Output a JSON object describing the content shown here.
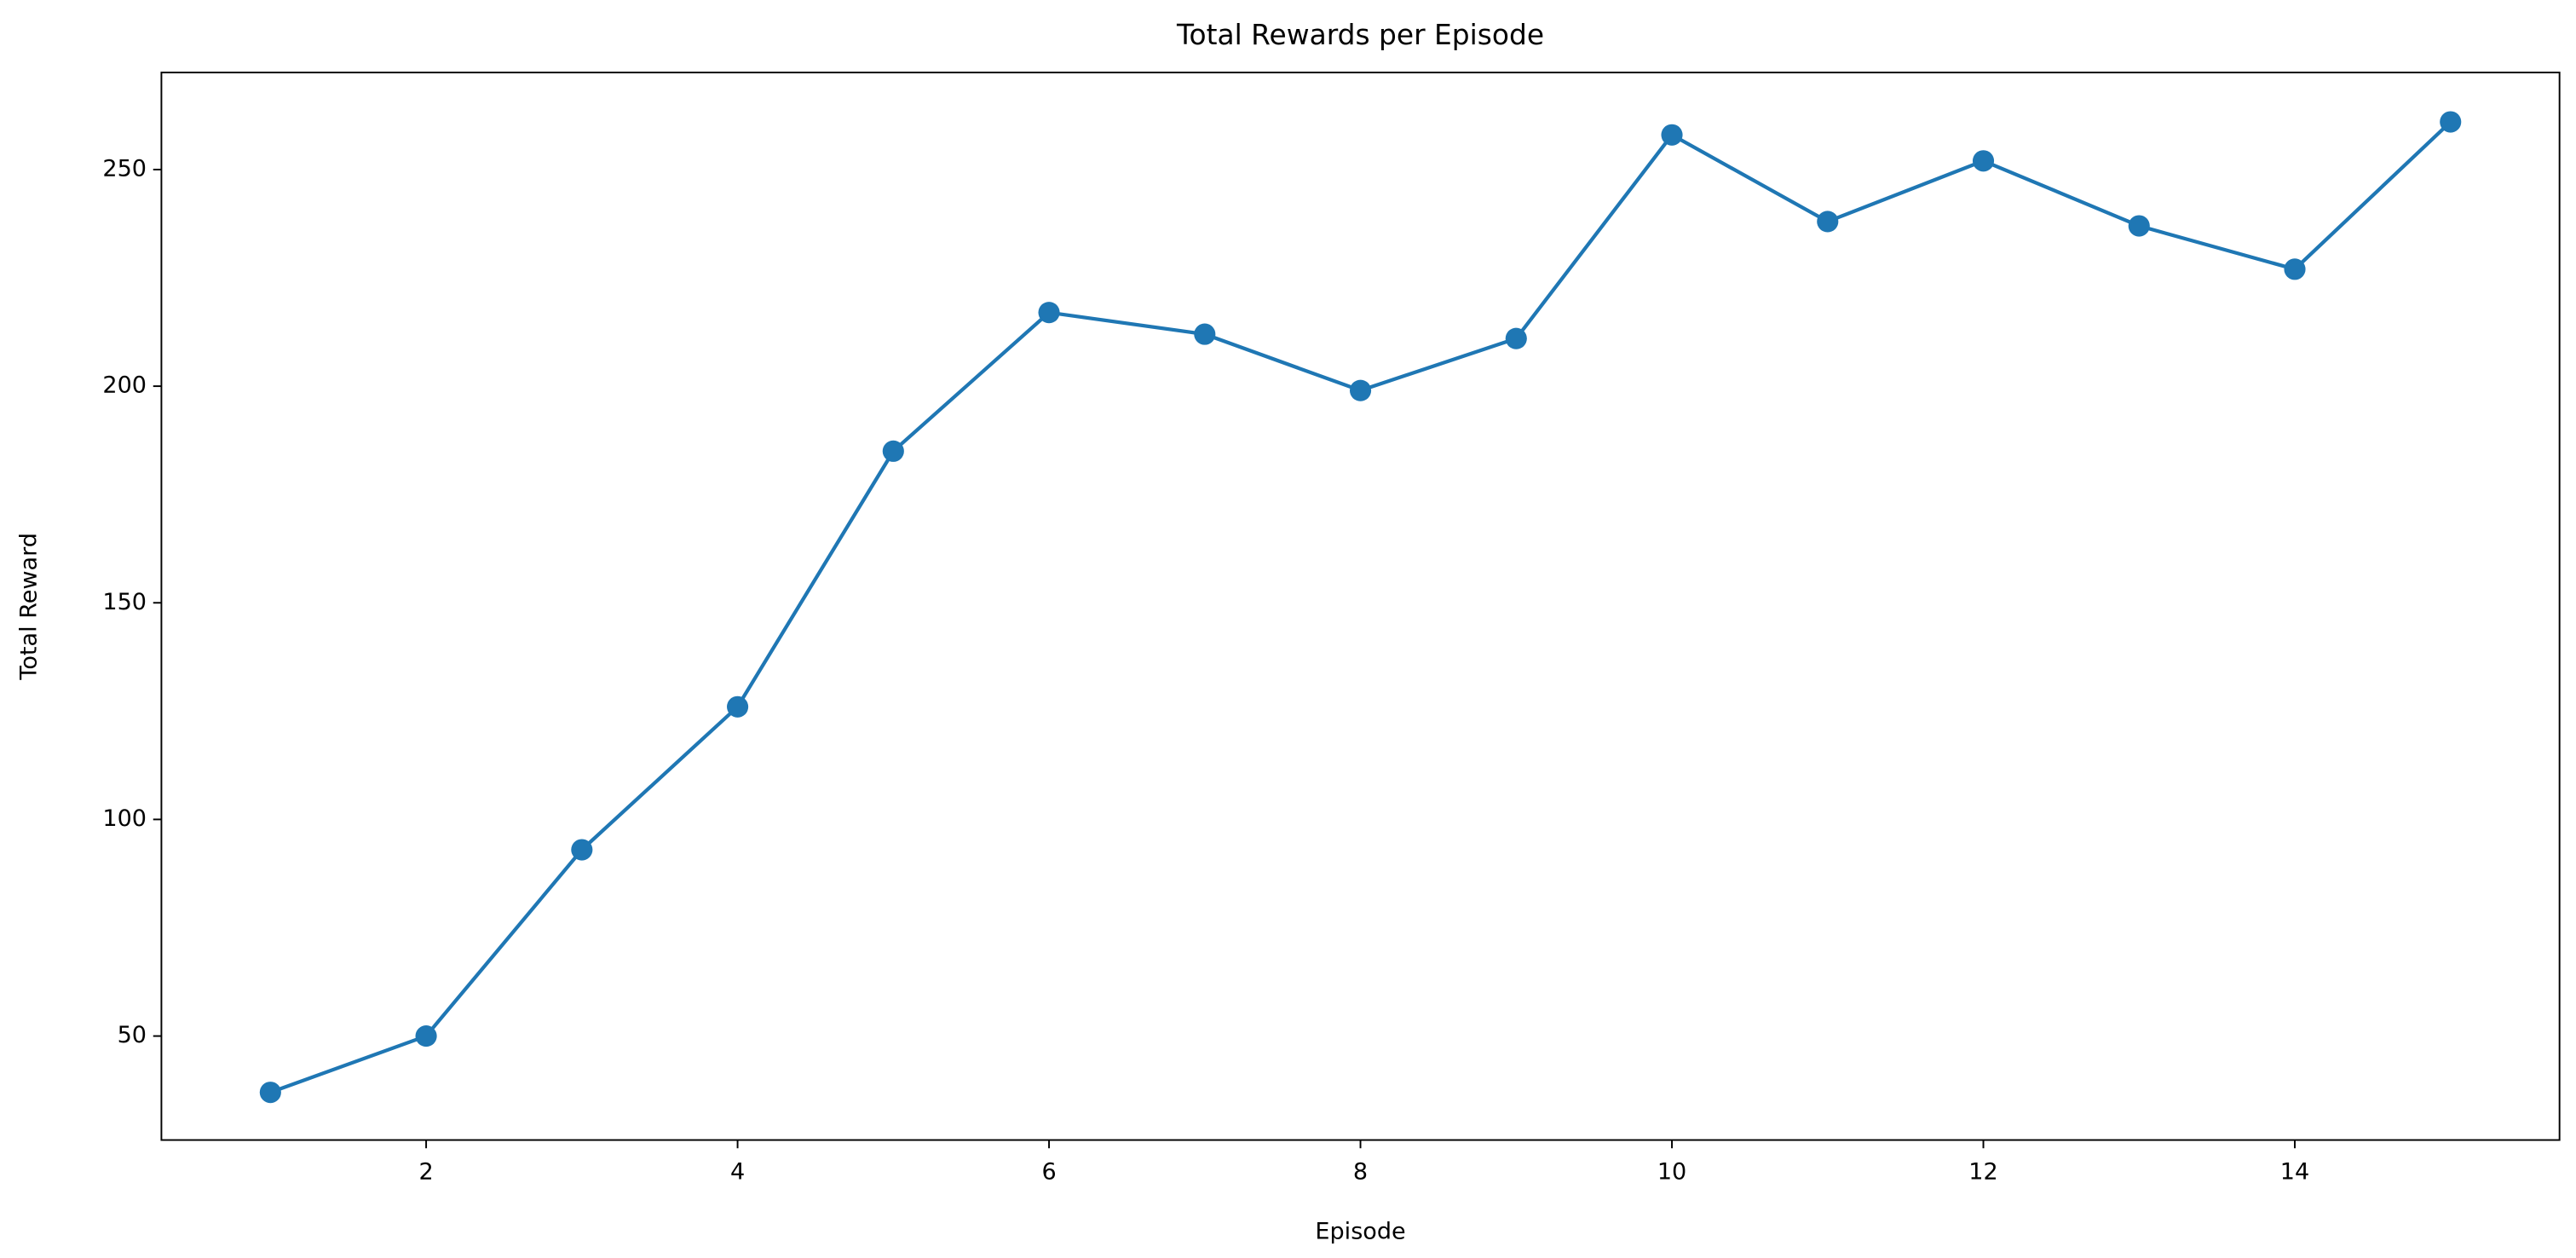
{
  "chart_data": {
    "type": "line",
    "title": "Total Rewards per Episode",
    "x_label": "Episode",
    "y_label": "Total Reward",
    "x": [
      1,
      2,
      3,
      4,
      5,
      6,
      7,
      8,
      9,
      10,
      11,
      12,
      13,
      14,
      15
    ],
    "series": [
      {
        "name": null,
        "color": "#1f77b4",
        "values": [
          37,
          50,
          93,
          126,
          185,
          217,
          212,
          199,
          211,
          258,
          238,
          252,
          237,
          227,
          261
        ]
      }
    ],
    "xlim": [
      0.3,
      15.7
    ],
    "ylim": [
      26,
      272.4
    ],
    "xticks": [
      2,
      4,
      6,
      8,
      10,
      12,
      14
    ],
    "yticks": [
      50,
      100,
      150,
      200,
      250
    ],
    "grid": false
  }
}
